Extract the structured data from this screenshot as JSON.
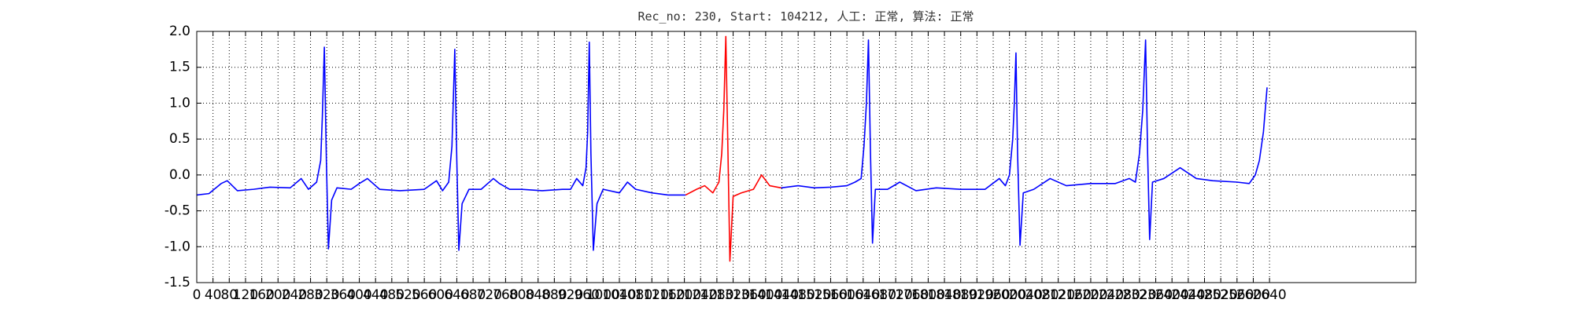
{
  "chart_data": {
    "type": "line",
    "title": "Rec_no: 230, Start: 104212, 人工: 正常, 算法: 正常",
    "xlim": [
      0,
      3000
    ],
    "ylim": [
      -1.5,
      2.0
    ],
    "xticks": [
      0,
      40,
      80,
      120,
      160,
      200,
      240,
      280,
      320,
      360,
      400,
      440,
      480,
      520,
      560,
      600,
      640,
      680,
      720,
      760,
      800,
      840,
      880,
      920,
      960,
      1000,
      1040,
      1080,
      1120,
      1160,
      1200,
      1240,
      1280,
      1320,
      1360,
      1400,
      1440,
      1480,
      1520,
      1560,
      1600,
      1640,
      1680,
      1720,
      1760,
      1800,
      1840,
      1880,
      1920,
      1960,
      2000,
      2040,
      2080,
      2120,
      2160,
      2200,
      2240,
      2280,
      2320,
      2360,
      2400,
      2440,
      2480,
      2520,
      2560,
      2600,
      2640
    ],
    "yticks": [
      -1.5,
      {
        "value": -1.0,
        "label": "-1.0"
      },
      -0.5,
      {
        "value": 0.0,
        "label": "0.0"
      },
      0.5,
      {
        "value": 1.0,
        "label": "1.0"
      },
      1.5,
      {
        "value": 2.0,
        "label": "2.0"
      }
    ],
    "grid": true,
    "series": [
      {
        "color": "#0000ff",
        "x": [
          0,
          30,
          60,
          75,
          100,
          140,
          180,
          230,
          257,
          275,
          295,
          305,
          309,
          314,
          319,
          324,
          332,
          345,
          380,
          400,
          420,
          450,
          500,
          560,
          590,
          605,
          620,
          628,
          635,
          640,
          645,
          653,
          670,
          700,
          730,
          745,
          770,
          800,
          850,
          900,
          920,
          935,
          950,
          958,
          962,
          966,
          970,
          976,
          985,
          1000,
          1040,
          1060,
          1080,
          1120,
          1160,
          1203
        ],
        "values": [
          -0.28,
          -0.26,
          -0.12,
          -0.08,
          -0.22,
          -0.2,
          -0.17,
          -0.18,
          -0.05,
          -0.2,
          -0.1,
          0.2,
          0.8,
          1.78,
          0.2,
          -1.03,
          -0.35,
          -0.18,
          -0.2,
          -0.12,
          -0.05,
          -0.2,
          -0.22,
          -0.2,
          -0.08,
          -0.22,
          -0.1,
          0.4,
          1.75,
          0.2,
          -1.05,
          -0.4,
          -0.2,
          -0.2,
          -0.05,
          -0.12,
          -0.2,
          -0.2,
          -0.22,
          -0.2,
          -0.2,
          -0.05,
          -0.15,
          0.1,
          0.6,
          1.85,
          0.3,
          -1.05,
          -0.4,
          -0.2,
          -0.25,
          -0.1,
          -0.2,
          -0.25,
          -0.28,
          -0.28
        ]
      },
      {
        "color": "#ff0000",
        "x": [
          1203,
          1230,
          1250,
          1270,
          1285,
          1292,
          1297,
          1302,
          1307,
          1312,
          1320,
          1340,
          1370,
          1390,
          1410,
          1438
        ],
        "values": [
          -0.28,
          -0.2,
          -0.15,
          -0.25,
          -0.1,
          0.3,
          0.9,
          1.93,
          0.4,
          -1.2,
          -0.3,
          -0.25,
          -0.2,
          0.0,
          -0.15,
          -0.18
        ]
      },
      {
        "color": "#0000ff",
        "x": [
          1438,
          1480,
          1520,
          1560,
          1600,
          1620,
          1635,
          1642,
          1648,
          1653,
          1658,
          1663,
          1670,
          1700,
          1730,
          1770,
          1820,
          1880,
          1940,
          1975,
          1990,
          2000,
          2008,
          2012,
          2016,
          2020,
          2026,
          2034,
          2060,
          2100,
          2140,
          2200,
          2260,
          2295,
          2310,
          2320,
          2328,
          2335,
          2340,
          2345,
          2352,
          2380,
          2420,
          2460,
          2500,
          2560,
          2590,
          2605,
          2615,
          2625,
          2634
        ],
        "values": [
          -0.18,
          -0.15,
          -0.18,
          -0.17,
          -0.15,
          -0.1,
          -0.05,
          0.4,
          1.0,
          1.88,
          0.3,
          -0.95,
          -0.2,
          -0.2,
          -0.1,
          -0.22,
          -0.18,
          -0.2,
          -0.2,
          -0.05,
          -0.15,
          0.0,
          0.5,
          1.0,
          1.7,
          0.3,
          -0.98,
          -0.25,
          -0.2,
          -0.05,
          -0.15,
          -0.12,
          -0.12,
          -0.05,
          -0.1,
          0.3,
          0.9,
          1.88,
          0.3,
          -0.9,
          -0.1,
          -0.05,
          0.1,
          -0.05,
          -0.08,
          -0.1,
          -0.12,
          0.0,
          0.2,
          0.6,
          1.22
        ]
      }
    ]
  }
}
